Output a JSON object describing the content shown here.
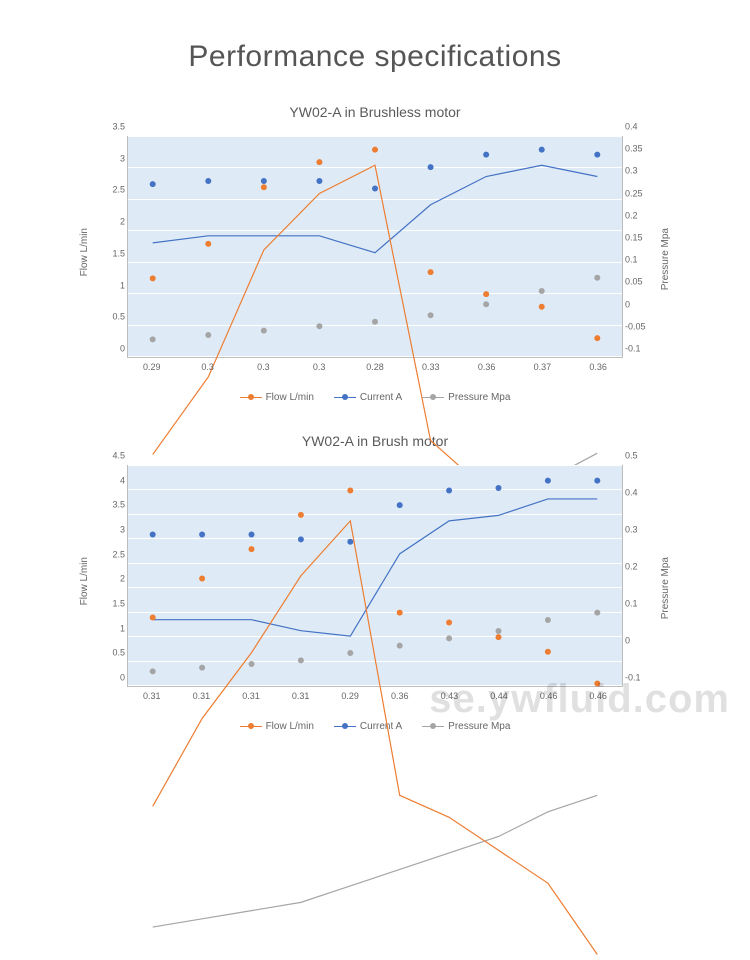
{
  "page": {
    "title": "Performance specifications",
    "watermark": "se.ywfluid.com"
  },
  "colors": {
    "flow": "#ed7d31",
    "current": "#4472c4",
    "pressure": "#a5a5a5",
    "plot_bg": "#deebf7",
    "grid": "#ffffff",
    "border": "#bdbdbd"
  },
  "legend_labels": {
    "flow": "Flow L/min",
    "current": "Current A",
    "pressure": "Pressure Mpa"
  },
  "charts": [
    {
      "title": "YW02-A in Brushless motor",
      "y_left_label": "Flow  L/min",
      "y_right_label": "Pressure  Mpa",
      "y_left": {
        "min": 0,
        "max": 3.5,
        "ticks": [
          0,
          0.5,
          1,
          1.5,
          2,
          2.5,
          3,
          3.5
        ]
      },
      "y_right": {
        "min": -0.1,
        "max": 0.4,
        "ticks": [
          -0.1,
          -0.05,
          0,
          0.05,
          0.1,
          0.15,
          0.2,
          0.25,
          0.3,
          0.35,
          0.4
        ]
      },
      "x_labels": [
        "0.29",
        "0.3",
        "0.3",
        "0.3",
        "0.28",
        "0.33",
        "0.36",
        "0.37",
        "0.36"
      ],
      "series": {
        "flow": {
          "axis": "left",
          "values": [
            1.25,
            1.8,
            2.7,
            3.1,
            3.3,
            1.35,
            1.0,
            0.8,
            0.3
          ]
        },
        "current": {
          "axis": "left",
          "values": [
            2.75,
            2.8,
            2.8,
            2.8,
            2.68,
            3.02,
            3.22,
            3.3,
            3.22
          ]
        },
        "pressure": {
          "axis": "right",
          "values": [
            -0.06,
            -0.05,
            -0.04,
            -0.03,
            -0.02,
            -0.005,
            0.02,
            0.05,
            0.08
          ]
        }
      }
    },
    {
      "title": "YW02-A in Brush motor",
      "y_left_label": "Flow  L/min",
      "y_right_label": "Pressure  Mpa",
      "y_left": {
        "min": 0,
        "max": 4.5,
        "ticks": [
          0,
          0.5,
          1,
          1.5,
          2,
          2.5,
          3,
          3.5,
          4,
          4.5
        ]
      },
      "y_right": {
        "min": -0.1,
        "max": 0.5,
        "ticks": [
          -0.1,
          0,
          0.1,
          0.2,
          0.3,
          0.4,
          0.5
        ]
      },
      "x_labels": [
        "0.31",
        "0.31",
        "0.31",
        "0.31",
        "0.29",
        "0.36",
        "0.43",
        "0.44",
        "0.46",
        "0.46"
      ],
      "series": {
        "flow": {
          "axis": "left",
          "values": [
            1.4,
            2.2,
            2.8,
            3.5,
            4.0,
            1.5,
            1.3,
            1.0,
            0.7,
            0.05
          ]
        },
        "current": {
          "axis": "left",
          "values": [
            3.1,
            3.1,
            3.1,
            3.0,
            2.95,
            3.7,
            4.0,
            4.05,
            4.2,
            4.2
          ]
        },
        "pressure": {
          "axis": "right",
          "values": [
            -0.06,
            -0.05,
            -0.04,
            -0.03,
            -0.01,
            0.01,
            0.03,
            0.05,
            0.08,
            0.1
          ]
        }
      }
    }
  ]
}
